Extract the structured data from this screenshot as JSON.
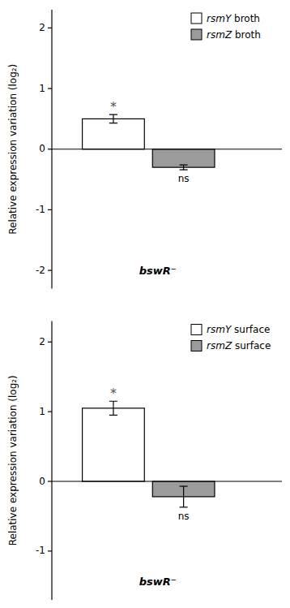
{
  "chart_data": [
    {
      "type": "bar",
      "ylabel": "Relative expression variation (log₂)",
      "categories": [
        null
      ],
      "series": [
        {
          "name": "rsmY broth",
          "color": "#ffffff",
          "values": [
            0.5
          ],
          "errors": [
            0.07
          ],
          "annotations": [
            "*"
          ]
        },
        {
          "name": "rsmZ broth",
          "color": "#9b9b9b",
          "values": [
            -0.3
          ],
          "errors": [
            0.04
          ],
          "annotations": [
            "ns"
          ]
        }
      ],
      "annotations": [
        "bswR⁻"
      ],
      "ylim": [
        -2.3,
        2.3
      ],
      "yticks": [
        -2,
        -1,
        0,
        1,
        2
      ],
      "legend": "upper right",
      "grid": false,
      "tick_labels": "y"
    },
    {
      "type": "bar",
      "ylabel": "Relative expression variation (log₂)",
      "categories": [
        null
      ],
      "series": [
        {
          "name": "rsmY surface",
          "color": "#ffffff",
          "values": [
            1.05
          ],
          "errors": [
            0.1
          ],
          "annotations": [
            "*"
          ]
        },
        {
          "name": "rsmZ surface",
          "color": "#9b9b9b",
          "values": [
            -0.22
          ],
          "errors": [
            0.15
          ],
          "annotations": [
            "ns"
          ]
        }
      ],
      "annotations": [
        "bswR⁻"
      ],
      "ylim": [
        -1.7,
        2.3
      ],
      "yticks": [
        -1,
        0,
        1,
        2
      ],
      "legend": "upper right",
      "grid": false,
      "tick_labels": "y"
    }
  ]
}
